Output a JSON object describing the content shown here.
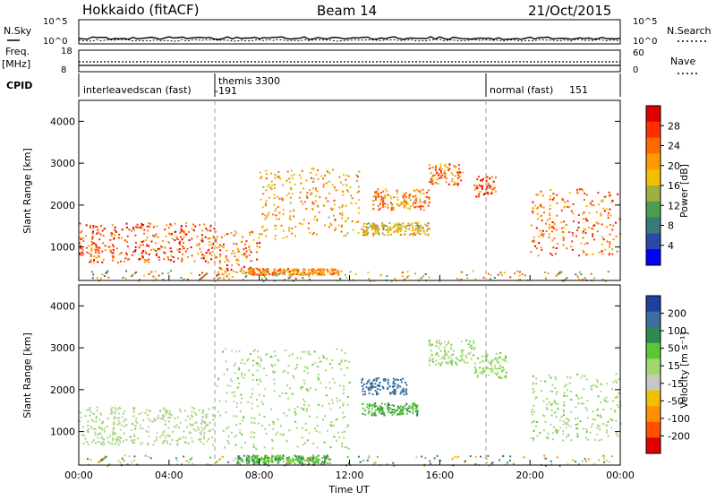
{
  "header": {
    "station": "Hokkaido (fitACF)",
    "beam": "Beam 14",
    "date": "21/Oct/2015"
  },
  "strip": {
    "nsky_label": "N.Sky",
    "nsky_ticks": [
      "10^5",
      "10^0"
    ],
    "nsearch_label": "N.Search",
    "nsearch_ticks": [
      "10^5",
      "10^0"
    ],
    "freq_label": "Freq.",
    "freq_unit": "[MHz]",
    "freq_ticks": [
      "18",
      "8"
    ],
    "nave_label": "Nave",
    "nave_ticks": [
      "60",
      "0"
    ],
    "cpid_label": "CPID",
    "cpid_segments": [
      {
        "name": "interleavedscan (fast)",
        "id": "",
        "start_hour": 0,
        "end_hour": 6
      },
      {
        "name": "themis 3300",
        "id": "-191",
        "start_hour": 6,
        "end_hour": 18
      },
      {
        "name": "normal (fast)",
        "id": "151",
        "start_hour": 18,
        "end_hour": 24
      }
    ]
  },
  "axes": {
    "xlabel": "Time UT",
    "xticks": [
      "00:00",
      "04:00",
      "08:00",
      "12:00",
      "16:00",
      "20:00",
      "00:00"
    ],
    "ylabel": "Slant Range [km]",
    "yticks": [
      "1000",
      "2000",
      "3000",
      "4000"
    ]
  },
  "power_colorbar": {
    "label": "Power [dB]",
    "ticks": [
      "28",
      "24",
      "20",
      "16",
      "12",
      "8",
      "4"
    ],
    "colors": [
      "#e00000",
      "#ff3000",
      "#ff6a00",
      "#ff9a00",
      "#f0c000",
      "#a0b040",
      "#4c9c50",
      "#3a7a78",
      "#2a4aa8",
      "#0000ff"
    ]
  },
  "velocity_colorbar": {
    "label": "Velocity [m s⁻¹]",
    "ticks": [
      "200",
      "100",
      "50",
      "15",
      "-15",
      "-50",
      "-100",
      "-200"
    ],
    "colors": [
      "#2040a0",
      "#3a70a0",
      "#2e8a50",
      "#5ac832",
      "#a0d870",
      "#c8c8c0",
      "#f0c000",
      "#ff9000",
      "#ff5000",
      "#e00000"
    ]
  },
  "chart_data": {
    "type": "heatmap",
    "x_unit": "hour UT",
    "xlim": [
      0,
      24
    ],
    "ylim": [
      200,
      4500
    ],
    "panels": [
      {
        "name": "Power",
        "unit": "dB",
        "features": [
          {
            "t0": 0,
            "t1": 6,
            "r0": 650,
            "r1": 1600,
            "value": 26
          },
          {
            "t0": 6,
            "t1": 8,
            "r0": 300,
            "r1": 1400,
            "value": 24
          },
          {
            "t0": 7.5,
            "t1": 11.5,
            "r0": 350,
            "r1": 500,
            "value": 22
          },
          {
            "t0": 8,
            "t1": 12.5,
            "r0": 1200,
            "r1": 2900,
            "value": 20
          },
          {
            "t0": 12.5,
            "t1": 15.5,
            "r0": 1300,
            "r1": 1600,
            "value": 18
          },
          {
            "t0": 13,
            "t1": 15.5,
            "r0": 1900,
            "r1": 2400,
            "value": 22
          },
          {
            "t0": 15.5,
            "t1": 17,
            "r0": 2500,
            "r1": 3000,
            "value": 24
          },
          {
            "t0": 17.5,
            "t1": 18.5,
            "r0": 2200,
            "r1": 2700,
            "value": 26
          },
          {
            "t0": 20,
            "t1": 24,
            "r0": 800,
            "r1": 2400,
            "value": 24
          }
        ]
      },
      {
        "name": "Velocity",
        "unit": "m s-1",
        "features": [
          {
            "t0": 0,
            "t1": 6,
            "r0": 700,
            "r1": 1600,
            "value": -5
          },
          {
            "t0": 6,
            "t1": 12,
            "r0": 600,
            "r1": 3000,
            "value": 0
          },
          {
            "t0": 7,
            "t1": 11,
            "r0": 250,
            "r1": 450,
            "value": 40
          },
          {
            "t0": 12.5,
            "t1": 15,
            "r0": 1400,
            "r1": 1700,
            "value": 45
          },
          {
            "t0": 12.5,
            "t1": 14.5,
            "r0": 1900,
            "r1": 2300,
            "value": 120
          },
          {
            "t0": 15.5,
            "t1": 17.5,
            "r0": 2600,
            "r1": 3200,
            "value": 0
          },
          {
            "t0": 17.5,
            "t1": 19,
            "r0": 2300,
            "r1": 2900,
            "value": 5
          },
          {
            "t0": 20,
            "t1": 24,
            "r0": 800,
            "r1": 2400,
            "value": 0
          }
        ]
      }
    ]
  }
}
